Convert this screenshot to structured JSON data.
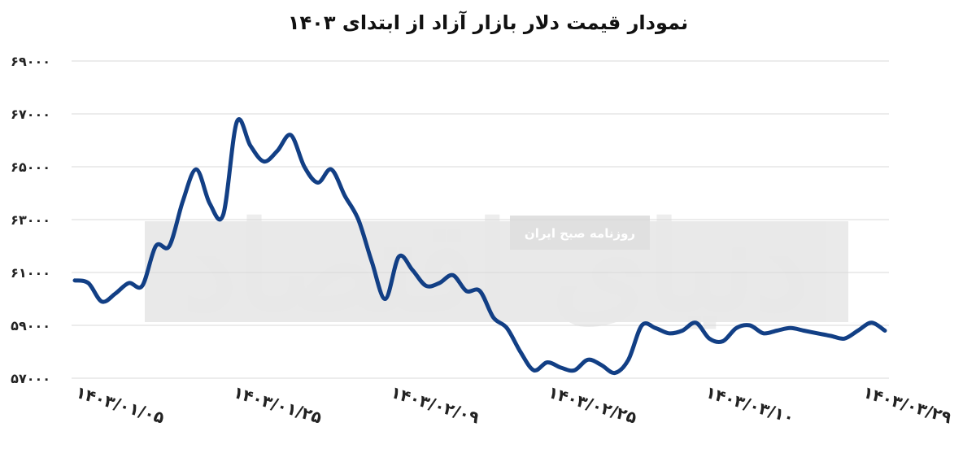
{
  "chart_data": {
    "type": "line",
    "title": "نمودار قیمت دلار بازار آزاد از ابتدای ۱۴۰۳",
    "xlabel": "",
    "ylabel": "",
    "ylim": [
      57000,
      69000
    ],
    "y_ticks": [
      "۶۹۰۰۰",
      "۶۷۰۰۰",
      "۶۵۰۰۰",
      "۶۳۰۰۰",
      "۶۱۰۰۰",
      "۵۹۰۰۰",
      "۵۷۰۰۰"
    ],
    "y_tick_values": [
      69000,
      67000,
      65000,
      63000,
      61000,
      59000,
      57000
    ],
    "x_tick_labels": [
      "۱۴۰۳/۰۱/۰۵",
      "۱۴۰۳/۰۱/۲۵",
      "۱۴۰۳/۰۲/۰۹",
      "۱۴۰۳/۰۲/۲۵",
      "۱۴۰۳/۰۳/۱۰",
      "۱۴۰۳/۰۳/۲۹"
    ],
    "grid": true,
    "line_color": "#123f85",
    "series": [
      {
        "values": [
          60700,
          60600,
          59900,
          60200,
          60600,
          60500,
          62000,
          62000,
          63700,
          64900,
          63600,
          63200,
          66700,
          65800,
          65200,
          65600,
          66200,
          65000,
          64400,
          64900,
          63900,
          63000,
          61400,
          60000,
          61600,
          61100,
          60500,
          60600,
          60900,
          60300,
          60300,
          59300,
          58900,
          58000,
          57300,
          57600,
          57400,
          57300,
          57700,
          57500,
          57200,
          57700,
          59000,
          58900,
          58700,
          58800,
          59100,
          58500,
          58400,
          58900,
          59000,
          58700,
          58800,
          58900,
          58800,
          58700,
          58600,
          58500,
          58800,
          59100,
          58800
        ]
      }
    ]
  },
  "watermark": {
    "logo_text": "دنیای اقتصاد",
    "sub_text": "روزنامه صبح ایران"
  }
}
